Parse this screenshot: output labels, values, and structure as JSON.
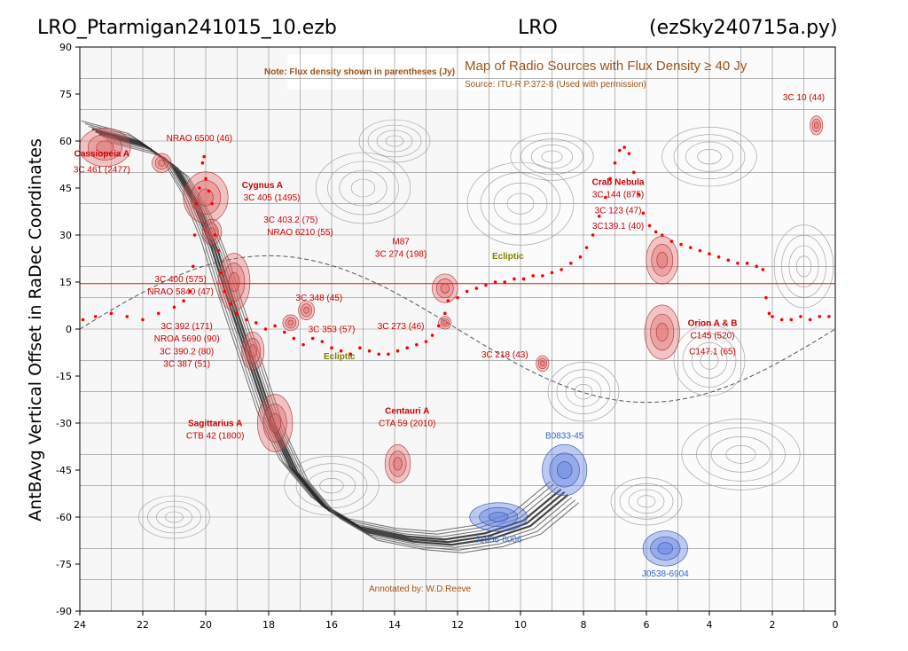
{
  "header": {
    "left": "LRO_Ptarmigan241015_10.ezb",
    "center": "LRO",
    "right": "(ezSky240715a.py)"
  },
  "chart_data": {
    "type": "scatter",
    "ylabel": "AntBAvg Vertical Offset in RaDec Coordinates",
    "xlabel": "",
    "xlim": [
      24,
      0
    ],
    "ylim": [
      -90,
      90
    ],
    "xticks": [
      "24",
      "22",
      "20",
      "18",
      "16",
      "14",
      "12",
      "10",
      "8",
      "6",
      "4",
      "2",
      "0"
    ],
    "yticks": [
      "90",
      "75",
      "60",
      "45",
      "30",
      "15",
      "0",
      "-15",
      "-30",
      "-45",
      "-60",
      "-75",
      "-90"
    ],
    "reference_line_dec": 14.5,
    "series": [
      {
        "color": "#ff0000",
        "points": [
          [
            23.9,
            3
          ],
          [
            23.5,
            4
          ],
          [
            23.0,
            5
          ],
          [
            22.5,
            4
          ],
          [
            22.0,
            3
          ],
          [
            21.5,
            5
          ],
          [
            21.0,
            7
          ],
          [
            20.7,
            9
          ],
          [
            20.5,
            12
          ],
          [
            20.4,
            20
          ],
          [
            20.35,
            30
          ],
          [
            20.3,
            40
          ],
          [
            20.2,
            45
          ],
          [
            20.1,
            53
          ],
          [
            20.05,
            55
          ],
          [
            20.0,
            48
          ],
          [
            19.9,
            44
          ],
          [
            19.8,
            40
          ],
          [
            19.7,
            30
          ],
          [
            19.6,
            25
          ],
          [
            19.5,
            18
          ],
          [
            19.4,
            12
          ],
          [
            19.2,
            8
          ],
          [
            19.0,
            5
          ],
          [
            18.7,
            3
          ],
          [
            18.4,
            2
          ],
          [
            18.1,
            0
          ],
          [
            17.8,
            1
          ],
          [
            17.5,
            -1
          ],
          [
            17.2,
            -3
          ],
          [
            16.9,
            -5
          ],
          [
            16.6,
            -3
          ],
          [
            16.3,
            -4
          ],
          [
            16.0,
            -6
          ],
          [
            15.7,
            -7
          ],
          [
            15.4,
            -8
          ],
          [
            15.1,
            -6
          ],
          [
            14.8,
            -7
          ],
          [
            14.5,
            -8
          ],
          [
            14.2,
            -8
          ],
          [
            13.9,
            -7
          ],
          [
            13.6,
            -6
          ],
          [
            13.3,
            -5
          ],
          [
            13.0,
            -4
          ],
          [
            12.8,
            -2
          ],
          [
            12.6,
            1
          ],
          [
            12.4,
            5
          ],
          [
            12.3,
            9
          ],
          [
            12.0,
            10
          ],
          [
            11.7,
            12
          ],
          [
            11.4,
            13
          ],
          [
            11.1,
            14
          ],
          [
            10.8,
            15
          ],
          [
            10.5,
            15
          ],
          [
            10.2,
            16
          ],
          [
            9.9,
            16
          ],
          [
            9.6,
            17
          ],
          [
            9.3,
            17
          ],
          [
            9.0,
            18
          ],
          [
            8.7,
            19
          ],
          [
            8.4,
            21
          ],
          [
            8.1,
            23
          ],
          [
            7.9,
            26
          ],
          [
            7.7,
            30
          ],
          [
            7.5,
            36
          ],
          [
            7.3,
            42
          ],
          [
            7.15,
            48
          ],
          [
            7.0,
            53
          ],
          [
            6.85,
            57
          ],
          [
            6.7,
            58
          ],
          [
            6.55,
            56
          ],
          [
            6.4,
            50
          ],
          [
            6.25,
            43
          ],
          [
            6.1,
            37
          ],
          [
            5.9,
            33
          ],
          [
            5.7,
            31
          ],
          [
            5.5,
            30
          ],
          [
            5.2,
            28
          ],
          [
            4.9,
            27
          ],
          [
            4.6,
            26
          ],
          [
            4.3,
            25
          ],
          [
            4.0,
            24
          ],
          [
            3.7,
            23
          ],
          [
            3.4,
            22
          ],
          [
            3.1,
            21
          ],
          [
            2.8,
            21
          ],
          [
            2.5,
            20
          ],
          [
            2.3,
            19
          ],
          [
            2.2,
            10
          ],
          [
            2.1,
            5
          ],
          [
            2.0,
            4
          ],
          [
            1.7,
            3
          ],
          [
            1.4,
            3
          ],
          [
            1.1,
            4
          ],
          [
            0.8,
            3
          ],
          [
            0.5,
            4
          ],
          [
            0.2,
            4
          ]
        ]
      }
    ],
    "map_overlay": {
      "title": "Map of Radio Sources with Flux Density ≥ 40 Jy",
      "source": "Source: ITU-R P.372-8 (Used with permission)",
      "note": "Note: Flux density shown in parentheses (Jy)",
      "annotator": "Annotated by: W.D.Reeve",
      "ecliptic_label": "Ecliptic",
      "labels": [
        {
          "text": "Cassiopeia A",
          "ra": 23.3,
          "dec": 55,
          "bold": true,
          "color": "#cc0000"
        },
        {
          "text": "3C 461 (2477)",
          "ra": 23.3,
          "dec": 50,
          "bold": false,
          "color": "#cc0000"
        },
        {
          "text": "NRAO 6500 (46)",
          "ra": 20.2,
          "dec": 60,
          "bold": false,
          "color": "#cc0000"
        },
        {
          "text": "Cygnus A",
          "ra": 18.2,
          "dec": 45,
          "bold": true,
          "color": "#cc0000"
        },
        {
          "text": "3C 405 (1495)",
          "ra": 17.9,
          "dec": 41,
          "bold": false,
          "color": "#cc0000"
        },
        {
          "text": "3C 403.2 (75)",
          "ra": 17.3,
          "dec": 34,
          "bold": false,
          "color": "#cc0000"
        },
        {
          "text": "NRAO 6210 (55)",
          "ra": 17.0,
          "dec": 30,
          "bold": false,
          "color": "#cc0000"
        },
        {
          "text": "3C 400 (575)",
          "ra": 20.8,
          "dec": 15,
          "bold": false,
          "color": "#cc0000"
        },
        {
          "text": "NRAO 5840 (47)",
          "ra": 20.8,
          "dec": 11,
          "bold": false,
          "color": "#cc0000"
        },
        {
          "text": "3C 348 (45)",
          "ra": 16.4,
          "dec": 9,
          "bold": false,
          "color": "#cc0000"
        },
        {
          "text": "3C 392 (171)",
          "ra": 20.6,
          "dec": 0,
          "bold": false,
          "color": "#cc0000"
        },
        {
          "text": "NROA 5690 (90)",
          "ra": 20.6,
          "dec": -4,
          "bold": false,
          "color": "#cc0000"
        },
        {
          "text": "3C 390.2 (80)",
          "ra": 20.6,
          "dec": -8,
          "bold": false,
          "color": "#cc0000"
        },
        {
          "text": "3C 387 (51)",
          "ra": 20.6,
          "dec": -12,
          "bold": false,
          "color": "#cc0000"
        },
        {
          "text": "3C 353 (57)",
          "ra": 16.0,
          "dec": -1,
          "bold": false,
          "color": "#cc0000"
        },
        {
          "text": "3C 273 (46)",
          "ra": 13.8,
          "dec": 0,
          "bold": false,
          "color": "#cc0000"
        },
        {
          "text": "M87",
          "ra": 13.8,
          "dec": 27,
          "bold": false,
          "color": "#cc0000"
        },
        {
          "text": "3C 274 (198)",
          "ra": 13.8,
          "dec": 23,
          "bold": false,
          "color": "#cc0000"
        },
        {
          "text": "3C 218 (43)",
          "ra": 10.5,
          "dec": -9,
          "bold": false,
          "color": "#cc0000"
        },
        {
          "text": "Sagittarius A",
          "ra": 19.7,
          "dec": -31,
          "bold": true,
          "color": "#cc0000"
        },
        {
          "text": "CTB 42 (1800)",
          "ra": 19.7,
          "dec": -35,
          "bold": false,
          "color": "#cc0000"
        },
        {
          "text": "Centauri A",
          "ra": 13.6,
          "dec": -27,
          "bold": true,
          "color": "#cc0000"
        },
        {
          "text": "CTA 59 (2010)",
          "ra": 13.6,
          "dec": -31,
          "bold": false,
          "color": "#cc0000"
        },
        {
          "text": "Crab Nebula",
          "ra": 6.9,
          "dec": 46,
          "bold": true,
          "color": "#cc0000"
        },
        {
          "text": "3C 144 (875)",
          "ra": 6.9,
          "dec": 42,
          "bold": false,
          "color": "#cc0000"
        },
        {
          "text": "3C 123 (47)",
          "ra": 6.9,
          "dec": 37,
          "bold": false,
          "color": "#cc0000"
        },
        {
          "text": "3C139.1 (40)",
          "ra": 6.9,
          "dec": 32,
          "bold": false,
          "color": "#cc0000"
        },
        {
          "text": "Orion A & B",
          "ra": 3.9,
          "dec": 1,
          "bold": true,
          "color": "#cc0000"
        },
        {
          "text": "C145 (520)",
          "ra": 3.9,
          "dec": -3,
          "bold": false,
          "color": "#cc0000"
        },
        {
          "text": "C147.1 (65)",
          "ra": 3.9,
          "dec": -8,
          "bold": false,
          "color": "#cc0000"
        },
        {
          "text": "3C 10 (44)",
          "ra": 1.0,
          "dec": 73,
          "bold": false,
          "color": "#cc0000"
        },
        {
          "text": "B0833-45",
          "ra": 8.6,
          "dec": -35,
          "bold": false,
          "color": "#3366cc"
        },
        {
          "text": "J1056-6006",
          "ra": 10.7,
          "dec": -68,
          "bold": false,
          "color": "#3366cc"
        },
        {
          "text": "J0538-6904",
          "ra": 5.4,
          "dec": -79,
          "bold": false,
          "color": "#3366cc"
        }
      ]
    }
  }
}
